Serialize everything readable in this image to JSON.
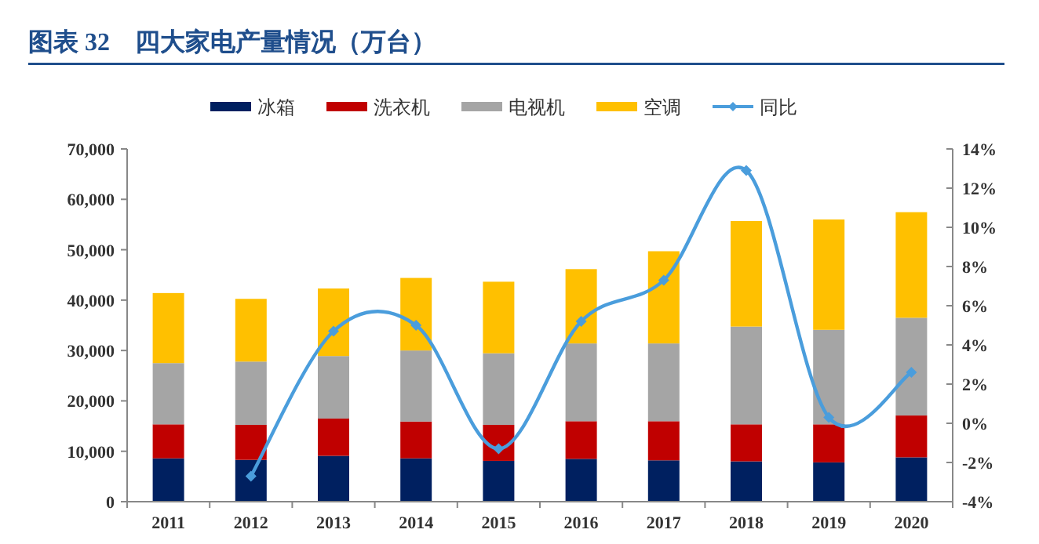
{
  "chart_data": {
    "type": "bar",
    "title": "图表 32　四大家电产量情况（万台）",
    "stacked": true,
    "legend": "top",
    "marker": "diamond",
    "categories": [
      "2011",
      "2012",
      "2013",
      "2014",
      "2015",
      "2016",
      "2017",
      "2018",
      "2019",
      "2020"
    ],
    "series": [
      {
        "name": "冰箱",
        "color": "#002060",
        "values": [
          8600,
          8300,
          9100,
          8600,
          8100,
          8500,
          8200,
          8000,
          7800,
          8800
        ]
      },
      {
        "name": "洗衣机",
        "color": "#c00000",
        "values": [
          6750,
          6950,
          7400,
          7300,
          7150,
          7470,
          7770,
          7350,
          7550,
          8300
        ]
      },
      {
        "name": "电视机",
        "color": "#a5a5a5",
        "values": [
          12150,
          12550,
          12400,
          14100,
          14200,
          15430,
          15430,
          19400,
          18750,
          19400
        ]
      },
      {
        "name": "空调",
        "color": "#ffc000",
        "values": [
          13900,
          12450,
          13400,
          14400,
          14200,
          14750,
          18300,
          20950,
          21900,
          20950
        ]
      },
      {
        "name": "同比",
        "type": "line",
        "axis": "y2",
        "color": "#4a9ddc",
        "values": [
          null,
          -2.7,
          4.7,
          5.0,
          -1.3,
          5.2,
          7.3,
          12.9,
          0.3,
          2.6
        ]
      }
    ],
    "ylim": [
      0,
      70000
    ],
    "yticks": [
      0,
      {
        "value": 10000,
        "label": "10,000"
      },
      {
        "value": 20000,
        "label": "20,000"
      },
      {
        "value": 30000,
        "label": "30,000"
      },
      {
        "value": 40000,
        "label": "40,000"
      },
      {
        "value": 50000,
        "label": "50,000"
      },
      {
        "value": 60000,
        "label": "60,000"
      },
      {
        "value": 70000,
        "label": "70,000"
      }
    ],
    "y2lim": [
      -4,
      14
    ],
    "y2ticks": [
      {
        "value": -4,
        "label": "-4%"
      },
      {
        "value": -2,
        "label": "-2%"
      },
      {
        "value": 0,
        "label": "0%"
      },
      {
        "value": 2,
        "label": "2%"
      },
      {
        "value": 4,
        "label": "4%"
      },
      {
        "value": 6,
        "label": "6%"
      },
      {
        "value": 8,
        "label": "8%"
      },
      {
        "value": 10,
        "label": "10%"
      },
      {
        "value": 12,
        "label": "12%"
      },
      {
        "value": 14,
        "label": "14%"
      }
    ]
  }
}
